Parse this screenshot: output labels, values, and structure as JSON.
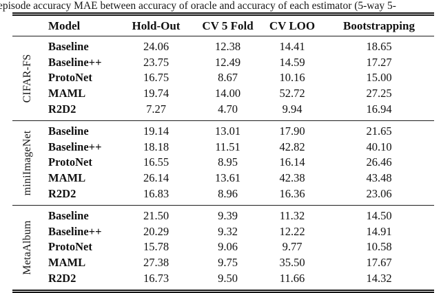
{
  "caption": "episode accuracy MAE between accuracy of oracle and accuracy of each estimator (5-way 5-",
  "table": {
    "columns": [
      "Model",
      "Hold-Out",
      "CV 5 Fold",
      "CV LOO",
      "Bootstrapping"
    ],
    "groups": [
      {
        "name": "CIFAR-FS",
        "rows": [
          {
            "model": "Baseline",
            "values": [
              "24.06",
              "12.38",
              "14.41",
              "18.65"
            ]
          },
          {
            "model": "Baseline++",
            "values": [
              "23.75",
              "12.49",
              "14.59",
              "17.27"
            ]
          },
          {
            "model": "ProtoNet",
            "values": [
              "16.75",
              "8.67",
              "10.16",
              "15.00"
            ]
          },
          {
            "model": "MAML",
            "values": [
              "19.74",
              "14.00",
              "52.72",
              "27.25"
            ]
          },
          {
            "model": "R2D2",
            "values": [
              "7.27",
              "4.70",
              "9.94",
              "16.94"
            ]
          }
        ]
      },
      {
        "name": "miniImageNet",
        "rows": [
          {
            "model": "Baseline",
            "values": [
              "19.14",
              "13.01",
              "17.90",
              "21.65"
            ]
          },
          {
            "model": "Baseline++",
            "values": [
              "18.18",
              "11.51",
              "42.82",
              "40.10"
            ]
          },
          {
            "model": "ProtoNet",
            "values": [
              "16.55",
              "8.95",
              "16.14",
              "26.46"
            ]
          },
          {
            "model": "MAML",
            "values": [
              "26.14",
              "13.61",
              "42.38",
              "43.48"
            ]
          },
          {
            "model": "R2D2",
            "values": [
              "16.83",
              "8.96",
              "16.36",
              "23.06"
            ]
          }
        ]
      },
      {
        "name": "MetaAlbum",
        "rows": [
          {
            "model": "Baseline",
            "values": [
              "21.50",
              "9.39",
              "11.32",
              "14.50"
            ]
          },
          {
            "model": "Baseline++",
            "values": [
              "20.29",
              "9.32",
              "12.22",
              "14.91"
            ]
          },
          {
            "model": "ProtoNet",
            "values": [
              "15.78",
              "9.06",
              "9.77",
              "10.58"
            ]
          },
          {
            "model": "MAML",
            "values": [
              "27.38",
              "9.75",
              "35.50",
              "17.67"
            ]
          },
          {
            "model": "R2D2",
            "values": [
              "16.73",
              "9.50",
              "11.66",
              "14.32"
            ]
          }
        ]
      }
    ]
  }
}
